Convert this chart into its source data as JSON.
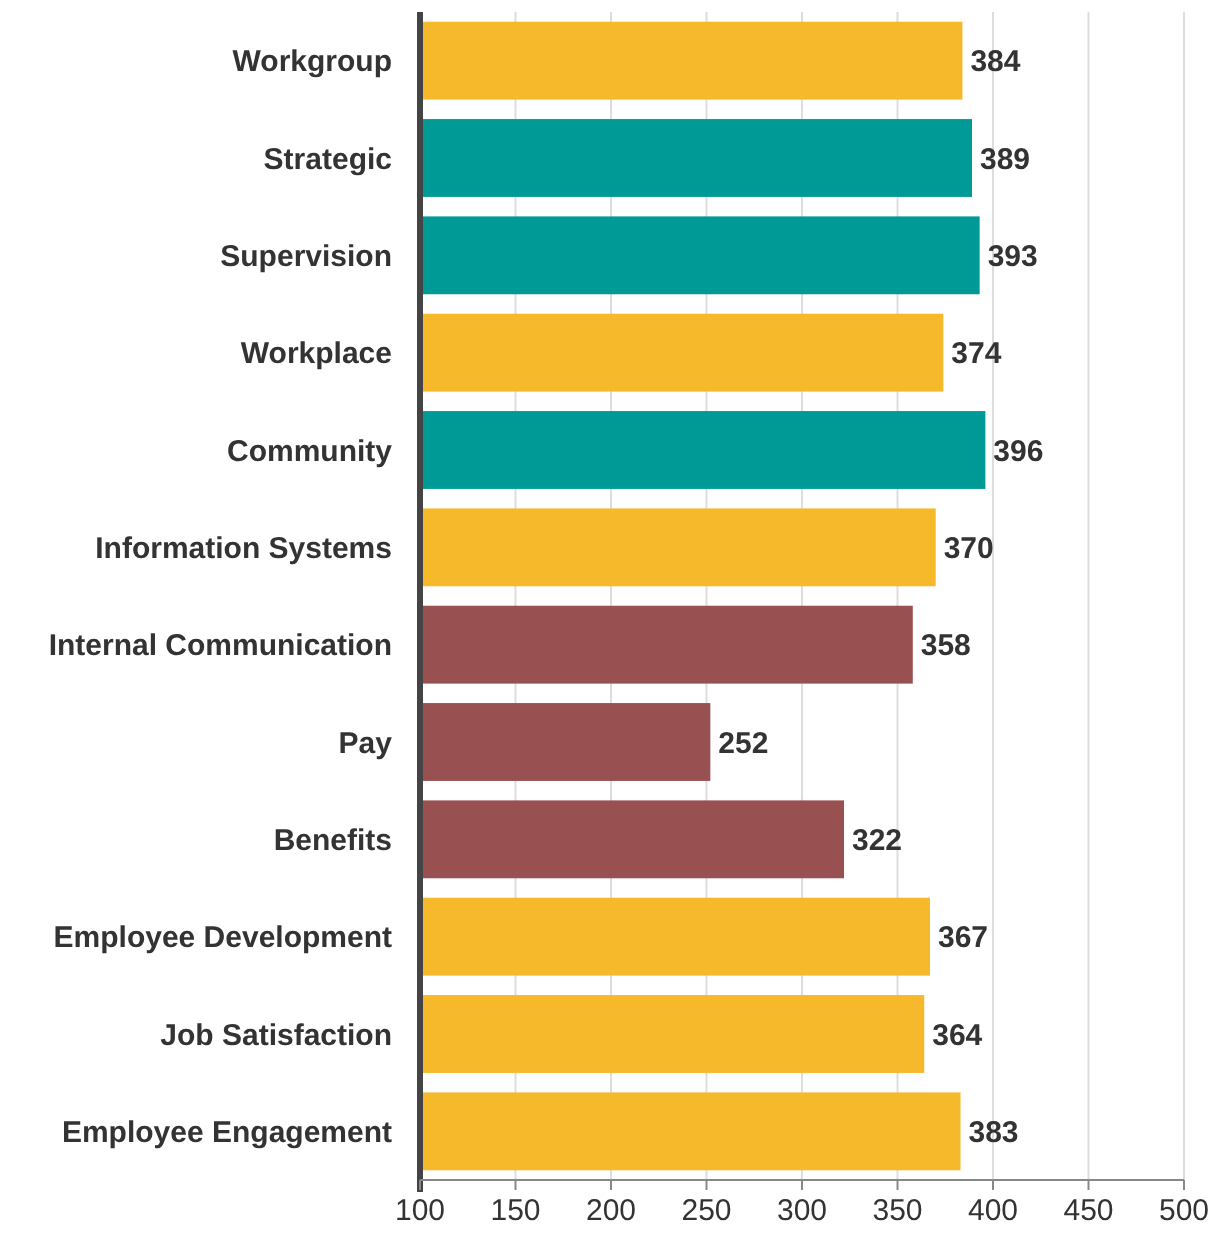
{
  "chart_data": {
    "type": "bar",
    "orientation": "horizontal",
    "categories": [
      "Workgroup",
      "Strategic",
      "Supervision",
      "Workplace",
      "Community",
      "Information Systems",
      "Internal Communication",
      "Pay",
      "Benefits",
      "Employee Development",
      "Job Satisfaction",
      "Employee Engagement"
    ],
    "values": [
      384,
      389,
      393,
      374,
      396,
      370,
      358,
      252,
      322,
      367,
      364,
      383
    ],
    "colors": [
      "#f6b92b",
      "#009a96",
      "#009a96",
      "#f6b92b",
      "#009a96",
      "#f6b92b",
      "#985050",
      "#985050",
      "#985050",
      "#f6b92b",
      "#f6b92b",
      "#f6b92b"
    ],
    "xlim": [
      100,
      500
    ],
    "xticks": [
      100,
      150,
      200,
      250,
      300,
      350,
      400,
      450,
      500
    ],
    "grid": "x",
    "data_labels": true
  }
}
